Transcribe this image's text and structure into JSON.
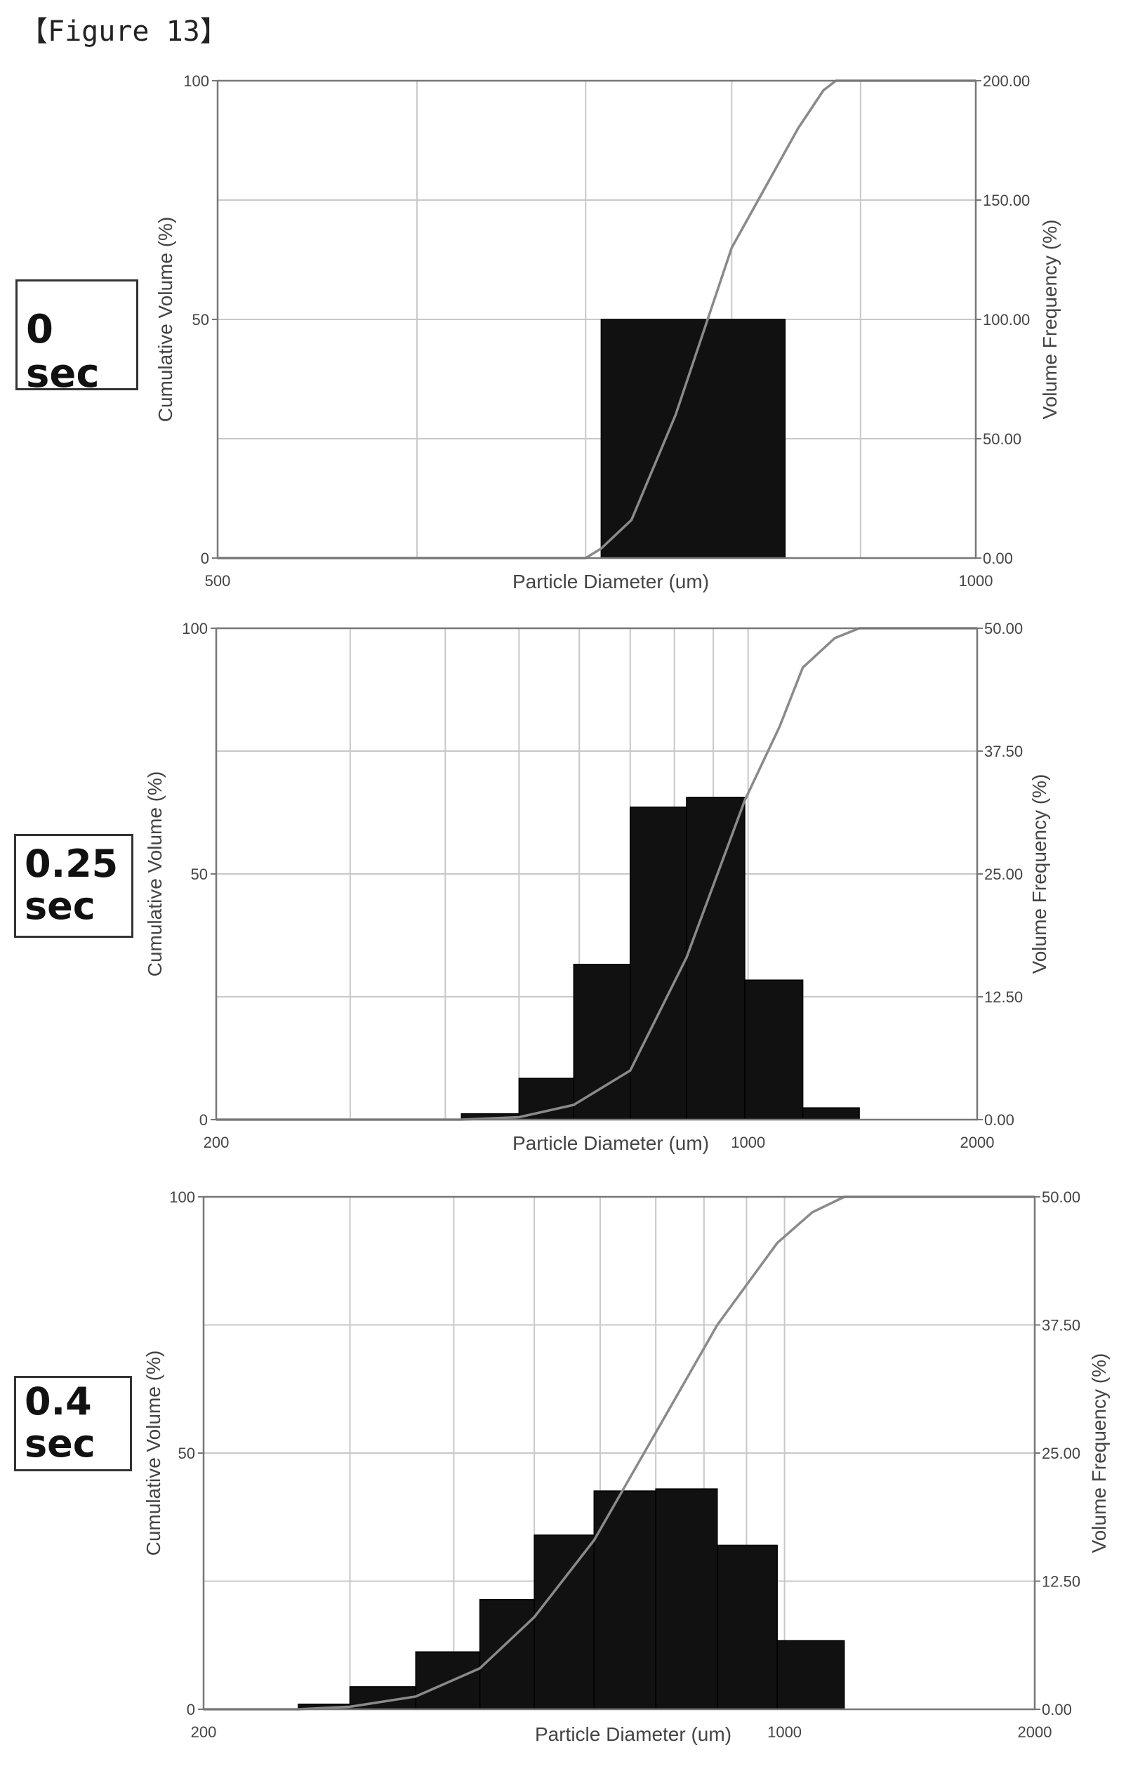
{
  "figure_label": "【Figure 13】",
  "chart_data": [
    {
      "type": "bar",
      "panel_label": "0 sec",
      "xlabel": "Particle Diameter (um)",
      "ylabel_left": "Cumulative Volume (%)",
      "ylabel_right": "Volume Frequency (%)",
      "x_scale": "log",
      "xlim": [
        500,
        1000
      ],
      "x_tick_labels": [
        "500",
        "1000"
      ],
      "ylim_left": [
        0,
        100
      ],
      "y_left_tick_labels": [
        "0",
        "50",
        "100"
      ],
      "ylim_right": [
        0,
        200
      ],
      "y_right_tick_labels": [
        "0.00",
        "50.00",
        "100.00",
        "150.00",
        "200.00"
      ],
      "grid": true,
      "bars": [
        {
          "x0": 710,
          "x1": 840,
          "value": 100
        }
      ],
      "cumulative": [
        [
          500,
          0
        ],
        [
          700,
          0
        ],
        [
          710,
          2
        ],
        [
          730,
          8
        ],
        [
          760,
          30
        ],
        [
          800,
          65
        ],
        [
          850,
          90
        ],
        [
          870,
          98
        ],
        [
          880,
          100
        ],
        [
          1000,
          100
        ]
      ]
    },
    {
      "type": "bar",
      "panel_label": "0.25\nsec",
      "xlabel": "Particle Diameter (um)",
      "ylabel_left": "Cumulative Volume (%)",
      "ylabel_right": "Volume Frequency (%)",
      "x_scale": "log",
      "xlim": [
        200,
        2000
      ],
      "x_tick_labels": [
        "200",
        "1000",
        "2000"
      ],
      "ylim_left": [
        0,
        100
      ],
      "y_left_tick_labels": [
        "0",
        "50",
        "100"
      ],
      "ylim_right": [
        0,
        50
      ],
      "y_right_tick_labels": [
        "0.00",
        "12.50",
        "25.00",
        "37.50",
        "50.00"
      ],
      "grid": true,
      "bars": [
        {
          "x0": 420,
          "x1": 500,
          "value": 0.6
        },
        {
          "x0": 500,
          "x1": 590,
          "value": 4.2
        },
        {
          "x0": 590,
          "x1": 700,
          "value": 15.8
        },
        {
          "x0": 700,
          "x1": 830,
          "value": 31.8
        },
        {
          "x0": 830,
          "x1": 990,
          "value": 32.8
        },
        {
          "x0": 990,
          "x1": 1180,
          "value": 14.2
        },
        {
          "x0": 1180,
          "x1": 1400,
          "value": 1.2
        }
      ],
      "cumulative": [
        [
          200,
          0
        ],
        [
          420,
          0
        ],
        [
          500,
          0.5
        ],
        [
          590,
          3
        ],
        [
          700,
          10
        ],
        [
          830,
          33
        ],
        [
          990,
          65
        ],
        [
          1100,
          80
        ],
        [
          1180,
          92
        ],
        [
          1300,
          98
        ],
        [
          1400,
          100
        ],
        [
          2000,
          100
        ]
      ]
    },
    {
      "type": "bar",
      "panel_label": "0.4\nsec",
      "xlabel": "Particle Diameter (um)",
      "ylabel_left": "Cumulative Volume (%)",
      "ylabel_right": "Volume Frequency (%)",
      "x_scale": "log",
      "xlim": [
        200,
        2000
      ],
      "x_tick_labels": [
        "200",
        "1000",
        "2000"
      ],
      "ylim_left": [
        0,
        100
      ],
      "y_left_tick_labels": [
        "0",
        "50",
        "100"
      ],
      "ylim_right": [
        0,
        50
      ],
      "y_right_tick_labels": [
        "0.00",
        "12.50",
        "25.00",
        "37.50",
        "50.00"
      ],
      "grid": true,
      "bars": [
        {
          "x0": 260,
          "x1": 300,
          "value": 0.5
        },
        {
          "x0": 300,
          "x1": 360,
          "value": 2.2
        },
        {
          "x0": 360,
          "x1": 430,
          "value": 5.6
        },
        {
          "x0": 430,
          "x1": 500,
          "value": 10.7
        },
        {
          "x0": 500,
          "x1": 590,
          "value": 17.0
        },
        {
          "x0": 590,
          "x1": 700,
          "value": 21.3
        },
        {
          "x0": 700,
          "x1": 830,
          "value": 21.5
        },
        {
          "x0": 830,
          "x1": 980,
          "value": 16.0
        },
        {
          "x0": 980,
          "x1": 1180,
          "value": 6.7
        }
      ],
      "cumulative": [
        [
          200,
          0
        ],
        [
          260,
          0
        ],
        [
          300,
          0.5
        ],
        [
          360,
          2.5
        ],
        [
          430,
          8
        ],
        [
          500,
          18
        ],
        [
          590,
          33
        ],
        [
          700,
          54
        ],
        [
          830,
          75
        ],
        [
          980,
          91
        ],
        [
          1080,
          97
        ],
        [
          1180,
          100
        ],
        [
          2000,
          100
        ]
      ]
    }
  ]
}
